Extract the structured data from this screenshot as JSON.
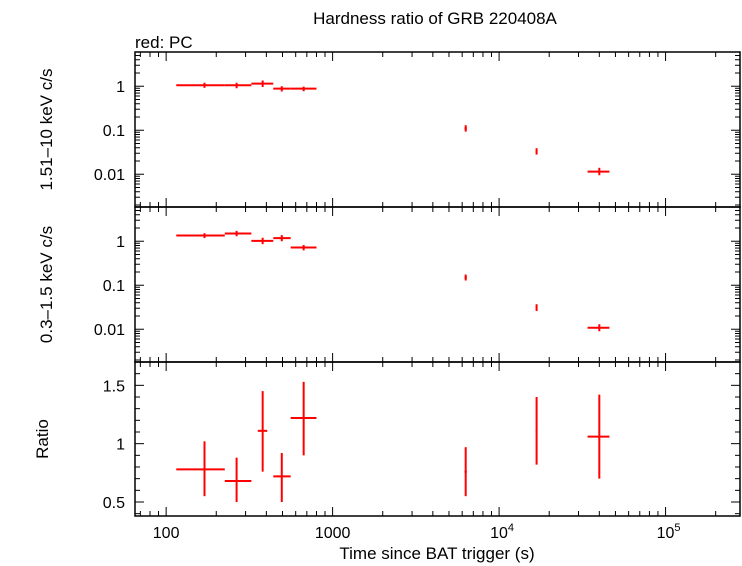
{
  "chart_data": {
    "type": "scatter",
    "title": "Hardness ratio of GRB 220408A",
    "legend_note": "red: PC",
    "series_color": "#ff0000",
    "x_axis": {
      "label": "Time since BAT trigger (s)",
      "scale": "log",
      "range": [
        65,
        280000
      ],
      "tick_labels": [
        {
          "value": 100,
          "text": "100",
          "sup": ""
        },
        {
          "value": 1000,
          "text": "1000",
          "sup": ""
        },
        {
          "value": 10000,
          "text": "10",
          "sup": "4"
        },
        {
          "value": 100000,
          "text": "10",
          "sup": "5"
        }
      ]
    },
    "panels": [
      {
        "name": "hard-band",
        "ylabel": "1.51–10 keV c/s",
        "scale": "log",
        "ylim": [
          0.0018,
          6
        ],
        "tick_labels": [
          {
            "value": 1,
            "text": "1"
          },
          {
            "value": 0.1,
            "text": "0.1"
          },
          {
            "value": 0.01,
            "text": "0.01"
          }
        ],
        "points": [
          {
            "x": 170,
            "xlo": 115,
            "xhi": 225,
            "y": 1.05,
            "ylo": 0.92,
            "yhi": 1.2
          },
          {
            "x": 265,
            "xlo": 225,
            "xhi": 325,
            "y": 1.05,
            "ylo": 0.9,
            "yhi": 1.2
          },
          {
            "x": 380,
            "xlo": 325,
            "xhi": 440,
            "y": 1.15,
            "ylo": 0.96,
            "yhi": 1.35
          },
          {
            "x": 495,
            "xlo": 440,
            "xhi": 560,
            "y": 0.88,
            "ylo": 0.76,
            "yhi": 1.0
          },
          {
            "x": 670,
            "xlo": 560,
            "xhi": 800,
            "y": 0.88,
            "ylo": 0.77,
            "yhi": 0.98
          },
          {
            "x": 6300,
            "xlo": 6200,
            "xhi": 6400,
            "y": 0.11,
            "ylo": 0.093,
            "yhi": 0.13
          },
          {
            "x": 16800,
            "xlo": 16600,
            "xhi": 17000,
            "y": 0.033,
            "ylo": 0.028,
            "yhi": 0.039
          },
          {
            "x": 40000,
            "xlo": 34000,
            "xhi": 46000,
            "y": 0.0115,
            "ylo": 0.0095,
            "yhi": 0.014
          }
        ]
      },
      {
        "name": "soft-band",
        "ylabel": "0.3–1.5 keV c/s",
        "scale": "log",
        "ylim": [
          0.0018,
          6
        ],
        "tick_labels": [
          {
            "value": 1,
            "text": "1"
          },
          {
            "value": 0.1,
            "text": "0.1"
          },
          {
            "value": 0.01,
            "text": "0.01"
          }
        ],
        "points": [
          {
            "x": 170,
            "xlo": 115,
            "xhi": 225,
            "y": 1.35,
            "ylo": 1.18,
            "yhi": 1.52
          },
          {
            "x": 265,
            "xlo": 225,
            "xhi": 325,
            "y": 1.5,
            "ylo": 1.3,
            "yhi": 1.72
          },
          {
            "x": 380,
            "xlo": 325,
            "xhi": 440,
            "y": 1.02,
            "ylo": 0.86,
            "yhi": 1.2
          },
          {
            "x": 495,
            "xlo": 440,
            "xhi": 560,
            "y": 1.18,
            "ylo": 1.0,
            "yhi": 1.38
          },
          {
            "x": 670,
            "xlo": 560,
            "xhi": 800,
            "y": 0.72,
            "ylo": 0.62,
            "yhi": 0.82
          },
          {
            "x": 6300,
            "xlo": 6200,
            "xhi": 6400,
            "y": 0.15,
            "ylo": 0.128,
            "yhi": 0.175
          },
          {
            "x": 16800,
            "xlo": 16600,
            "xhi": 17000,
            "y": 0.031,
            "ylo": 0.026,
            "yhi": 0.037
          },
          {
            "x": 40000,
            "xlo": 34000,
            "xhi": 46000,
            "y": 0.0108,
            "ylo": 0.009,
            "yhi": 0.013
          }
        ]
      },
      {
        "name": "ratio",
        "ylabel": "Ratio",
        "scale": "linear",
        "ylim": [
          0.38,
          1.7
        ],
        "tick_labels": [
          {
            "value": 1.5,
            "text": "1.5"
          },
          {
            "value": 1,
            "text": "1"
          },
          {
            "value": 0.5,
            "text": "0.5"
          }
        ],
        "minor_step": 0.1,
        "points": [
          {
            "x": 170,
            "xlo": 115,
            "xhi": 225,
            "y": 0.78,
            "ylo": 0.55,
            "yhi": 1.02
          },
          {
            "x": 265,
            "xlo": 225,
            "xhi": 325,
            "y": 0.68,
            "ylo": 0.5,
            "yhi": 0.88
          },
          {
            "x": 380,
            "xlo": 355,
            "xhi": 405,
            "y": 1.11,
            "ylo": 0.76,
            "yhi": 1.45
          },
          {
            "x": 495,
            "xlo": 440,
            "xhi": 560,
            "y": 0.72,
            "ylo": 0.5,
            "yhi": 0.92
          },
          {
            "x": 670,
            "xlo": 560,
            "xhi": 800,
            "y": 1.22,
            "ylo": 0.9,
            "yhi": 1.53
          },
          {
            "x": 6300,
            "xlo": 6200,
            "xhi": 6400,
            "y": 0.76,
            "ylo": 0.55,
            "yhi": 0.97
          },
          {
            "x": 16800,
            "xlo": 16600,
            "xhi": 17000,
            "y": 1.11,
            "ylo": 0.82,
            "yhi": 1.4
          },
          {
            "x": 40000,
            "xlo": 34000,
            "xhi": 46000,
            "y": 1.06,
            "ylo": 0.7,
            "yhi": 1.42
          }
        ]
      }
    ]
  }
}
